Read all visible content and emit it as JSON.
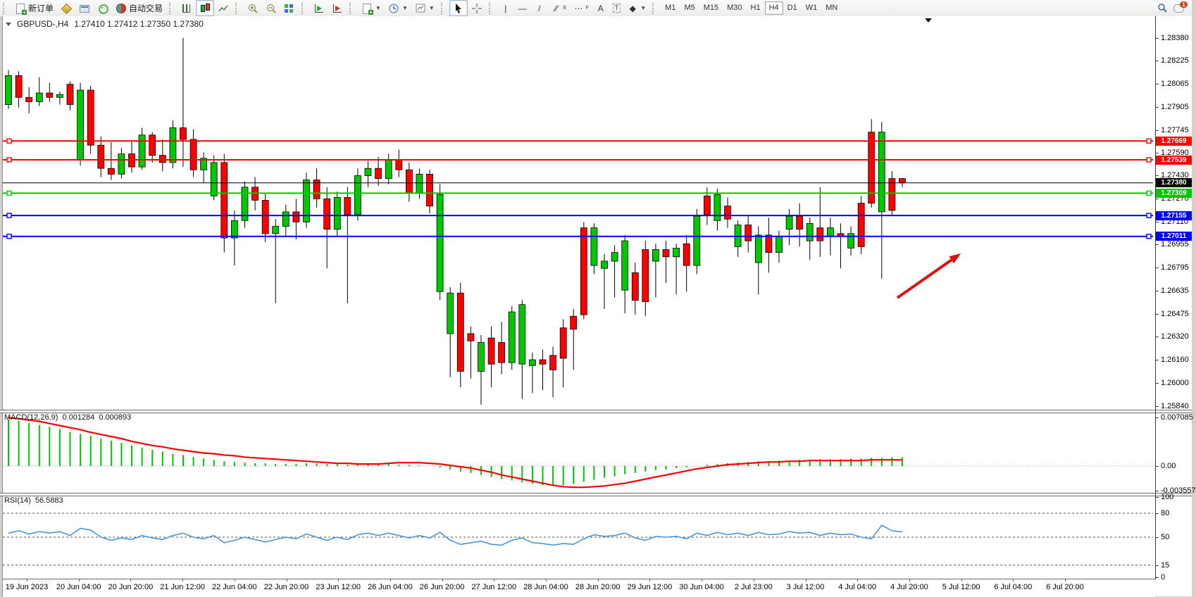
{
  "toolbar": {
    "new_order_label": "新订单",
    "auto_trading_label": "自动交易",
    "text_tool_label": "A",
    "label_tool_label": "T",
    "channel_suffix": "E",
    "fibo_suffix": "F",
    "timeframes": [
      "M1",
      "M5",
      "M15",
      "M30",
      "H1",
      "H4",
      "D1",
      "W1",
      "MN"
    ],
    "active_timeframe": "H4",
    "notifications_badge": "1"
  },
  "chart": {
    "title": {
      "symbol_period": "GBPUSD-,H4",
      "ohlc": "1.27410 1.27412 1.27350 1.27380"
    },
    "time_labels": [
      "19 Jun 2023",
      "20 Jun 04:00",
      "20 Jun 20:00",
      "21 Jun 12:00",
      "22 Jun 04:00",
      "22 Jun 20:00",
      "23 Jun 12:00",
      "26 Jun 04:00",
      "26 Jun 20:00",
      "27 Jun 12:00",
      "28 Jun 04:00",
      "28 Jun 20:00",
      "29 Jun 12:00",
      "30 Jun 04:00",
      "2 Jul 23:00",
      "3 Jul 12:00",
      "4 Jul 04:00",
      "4 Jul 20:00",
      "5 Jul 12:00",
      "6 Jul 04:00",
      "6 Jul 20:00"
    ],
    "colors": {
      "bull": "#00C800",
      "bear": "#FF0000",
      "wick": "#000000",
      "bid_line": "#000000",
      "resistance": "#FF0000",
      "support_green": "#00C800",
      "support_blue": "#0000FF",
      "macd_hist": "#00C800",
      "macd_signal": "#FF0000",
      "rsi_line": "#4A96D2",
      "arrow": "#E01010"
    }
  },
  "chart_data": [
    {
      "type": "candlestick",
      "title": "GBPUSD-,H4",
      "current_ohlc_display": "1.27410 1.27412 1.27350 1.27380",
      "current": {
        "open": 1.2741,
        "high": 1.27412,
        "low": 1.2735,
        "close": 1.2738
      },
      "ylim": [
        1.25815,
        1.28525
      ],
      "price_scale": [
        "1.28380",
        "1.28225",
        "1.28065",
        "1.27905",
        "1.27745",
        "1.27590",
        "1.27430",
        "1.27270",
        "1.27110",
        "1.26955",
        "1.26795",
        "1.26635",
        "1.26475",
        "1.26320",
        "1.26160",
        "1.26000",
        "1.25840"
      ],
      "hlines": [
        {
          "price": 1.27669,
          "label": "1.27669",
          "color": "#FF0000",
          "width": 2,
          "handles": true
        },
        {
          "price": 1.27539,
          "label": "1.27539",
          "color": "#FF0000",
          "width": 2,
          "handles": true
        },
        {
          "price": 1.2738,
          "label": "1.27380",
          "color": "#000000",
          "width": 1,
          "handles": false
        },
        {
          "price": 1.27309,
          "label": "1.27309",
          "color": "#00C800",
          "width": 2,
          "handles": true
        },
        {
          "price": 1.27155,
          "label": "1.27155",
          "color": "#0000FF",
          "width": 2,
          "handles": true
        },
        {
          "price": 1.27011,
          "label": "1.27011",
          "color": "#0000FF",
          "width": 2,
          "handles": true
        }
      ],
      "annotation_arrow": {
        "from": [
          1270,
          400
        ],
        "to": [
          1360,
          337
        ],
        "color": "#E01010"
      },
      "ohlc": [
        [
          1.2792,
          1.2816,
          1.2789,
          1.2812
        ],
        [
          1.2812,
          1.2815,
          1.279,
          1.2797
        ],
        [
          1.2797,
          1.2804,
          1.2786,
          1.2794
        ],
        [
          1.2794,
          1.2811,
          1.2791,
          1.28
        ],
        [
          1.28,
          1.2807,
          1.2794,
          1.2797
        ],
        [
          1.2797,
          1.2801,
          1.2792,
          1.2799
        ],
        [
          1.2806,
          1.2808,
          1.2788,
          1.2792
        ],
        [
          1.2754,
          1.2807,
          1.275,
          1.2802
        ],
        [
          1.2802,
          1.2805,
          1.2758,
          1.2764
        ],
        [
          1.2764,
          1.277,
          1.2742,
          1.2748
        ],
        [
          1.2748,
          1.2766,
          1.274,
          1.2744
        ],
        [
          1.2744,
          1.2762,
          1.2741,
          1.2758
        ],
        [
          1.2758,
          1.2767,
          1.2745,
          1.2749
        ],
        [
          1.2749,
          1.2776,
          1.2747,
          1.2771
        ],
        [
          1.2771,
          1.2773,
          1.2752,
          1.2757
        ],
        [
          1.2757,
          1.2768,
          1.2746,
          1.2752
        ],
        [
          1.2752,
          1.2781,
          1.2748,
          1.2776
        ],
        [
          1.2776,
          1.2838,
          1.2749,
          1.2768
        ],
        [
          1.2768,
          1.2775,
          1.2742,
          1.2747
        ],
        [
          1.2747,
          1.2759,
          1.2738,
          1.2755
        ],
        [
          1.2729,
          1.2757,
          1.2726,
          1.2752
        ],
        [
          1.2752,
          1.2758,
          1.269,
          1.27
        ],
        [
          1.27,
          1.2719,
          1.2681,
          1.2712
        ],
        [
          1.2712,
          1.2739,
          1.2707,
          1.2735
        ],
        [
          1.2735,
          1.2742,
          1.2719,
          1.2726
        ],
        [
          1.2726,
          1.2731,
          1.2697,
          1.2703
        ],
        [
          1.2703,
          1.2713,
          1.2655,
          1.2708
        ],
        [
          1.2708,
          1.2723,
          1.2701,
          1.2718
        ],
        [
          1.2718,
          1.2727,
          1.2699,
          1.2711
        ],
        [
          1.2711,
          1.2745,
          1.2707,
          1.274
        ],
        [
          1.274,
          1.2748,
          1.2721,
          1.2727
        ],
        [
          1.2727,
          1.2735,
          1.2679,
          1.2706
        ],
        [
          1.2706,
          1.2732,
          1.2701,
          1.2728
        ],
        [
          1.2728,
          1.2735,
          1.2655,
          1.2716
        ],
        [
          1.2716,
          1.2748,
          1.2712,
          1.2743
        ],
        [
          1.2743,
          1.2753,
          1.2735,
          1.2748
        ],
        [
          1.2748,
          1.2756,
          1.2736,
          1.2741
        ],
        [
          1.2741,
          1.2758,
          1.2737,
          1.2754
        ],
        [
          1.2754,
          1.2761,
          1.2742,
          1.2747
        ],
        [
          1.2747,
          1.2752,
          1.2725,
          1.2731
        ],
        [
          1.2731,
          1.2748,
          1.2727,
          1.2744
        ],
        [
          1.2744,
          1.2747,
          1.2717,
          1.2722
        ],
        [
          1.2663,
          1.2737,
          1.2657,
          1.273
        ],
        [
          1.2634,
          1.2666,
          1.2604,
          1.2662
        ],
        [
          1.2662,
          1.2669,
          1.2597,
          1.2608
        ],
        [
          1.2634,
          1.2639,
          1.2603,
          1.2629
        ],
        [
          1.2608,
          1.2633,
          1.2585,
          1.2628
        ],
        [
          1.2631,
          1.2639,
          1.2597,
          1.2613
        ],
        [
          1.2628,
          1.2642,
          1.2606,
          1.2614
        ],
        [
          1.2614,
          1.2653,
          1.2609,
          1.2649
        ],
        [
          1.2613,
          1.2657,
          1.2589,
          1.2654
        ],
        [
          1.2612,
          1.2621,
          1.2593,
          1.2616
        ],
        [
          1.2616,
          1.2623,
          1.2595,
          1.2613
        ],
        [
          1.2619,
          1.2625,
          1.259,
          1.2609
        ],
        [
          1.2638,
          1.2644,
          1.2597,
          1.2617
        ],
        [
          1.2646,
          1.2651,
          1.2609,
          1.2637
        ],
        [
          1.2707,
          1.2711,
          1.2644,
          1.2647
        ],
        [
          1.2681,
          1.271,
          1.2675,
          1.2707
        ],
        [
          1.2679,
          1.2689,
          1.2651,
          1.2684
        ],
        [
          1.2684,
          1.2695,
          1.2659,
          1.269
        ],
        [
          1.2664,
          1.2702,
          1.2648,
          1.2698
        ],
        [
          1.2676,
          1.2683,
          1.2647,
          1.2657
        ],
        [
          1.2692,
          1.2698,
          1.2646,
          1.2656
        ],
        [
          1.2684,
          1.2696,
          1.2659,
          1.2692
        ],
        [
          1.2692,
          1.2698,
          1.2669,
          1.2687
        ],
        [
          1.2687,
          1.2696,
          1.2661,
          1.2693
        ],
        [
          1.2696,
          1.2702,
          1.2663,
          1.2681
        ],
        [
          1.2681,
          1.272,
          1.2675,
          1.2715
        ],
        [
          1.2729,
          1.2735,
          1.2709,
          1.2716
        ],
        [
          1.2712,
          1.2734,
          1.2705,
          1.273
        ],
        [
          1.2722,
          1.2728,
          1.2707,
          1.2713
        ],
        [
          1.2694,
          1.2712,
          1.2687,
          1.2709
        ],
        [
          1.2709,
          1.2716,
          1.269,
          1.2698
        ],
        [
          1.2683,
          1.2708,
          1.2661,
          1.2702
        ],
        [
          1.2702,
          1.2714,
          1.2676,
          1.269
        ],
        [
          1.269,
          1.2705,
          1.2683,
          1.2701
        ],
        [
          1.2706,
          1.272,
          1.2695,
          1.2715
        ],
        [
          1.2715,
          1.2724,
          1.2694,
          1.2706
        ],
        [
          1.2698,
          1.2714,
          1.2685,
          1.271
        ],
        [
          1.2707,
          1.2735,
          1.2687,
          1.2698
        ],
        [
          1.2701,
          1.2714,
          1.2688,
          1.2707
        ],
        [
          1.2703,
          1.271,
          1.2679,
          1.2701
        ],
        [
          1.2693,
          1.2708,
          1.2688,
          1.2703
        ],
        [
          1.2724,
          1.2729,
          1.2689,
          1.2694
        ],
        [
          1.2773,
          1.2782,
          1.2721,
          1.2724
        ],
        [
          1.2718,
          1.278,
          1.2672,
          1.2773
        ],
        [
          1.2741,
          1.2746,
          1.2716,
          1.2719
        ],
        [
          1.2741,
          1.27412,
          1.2735,
          1.2738
        ]
      ]
    },
    {
      "type": "bar",
      "name": "MACD",
      "label": "MACD(12,26,9)",
      "value_display": "0.001284",
      "signal_display": "0.000893",
      "axis_labels": [
        "0.007085",
        "0.00",
        "-0.003557"
      ],
      "axis_values": [
        0.007085,
        0,
        -0.003557
      ],
      "values": [
        0.0068,
        0.0066,
        0.0063,
        0.006,
        0.0057,
        0.0054,
        0.005,
        0.0047,
        0.0044,
        0.004,
        0.0037,
        0.0034,
        0.003,
        0.0027,
        0.0024,
        0.0021,
        0.0018,
        0.0016,
        0.0013,
        0.0011,
        0.0009,
        0.0007,
        0.0006,
        0.0005,
        0.0004,
        0.0004,
        0.0003,
        0.0003,
        0.0003,
        0.0004,
        0.0004,
        0.0003,
        0.0003,
        0.0002,
        0.0003,
        0.0003,
        0.0002,
        0.0003,
        0.0002,
        0.0002,
        0.0001,
        0.0,
        -0.0002,
        -0.0005,
        -0.0008,
        -0.001,
        -0.0013,
        -0.0016,
        -0.0019,
        -0.0021,
        -0.0024,
        -0.0026,
        -0.0028,
        -0.0029,
        -0.0028,
        -0.0026,
        -0.0023,
        -0.002,
        -0.0017,
        -0.0015,
        -0.0012,
        -0.001,
        -0.0008,
        -0.0006,
        -0.0005,
        -0.0003,
        -0.0002,
        0.0,
        0.0002,
        0.0003,
        0.0004,
        0.0005,
        0.0006,
        0.0007,
        0.0007,
        0.0008,
        0.0008,
        0.0009,
        0.0009,
        0.001,
        0.001,
        0.001,
        0.0011,
        0.0011,
        0.0012,
        0.0012,
        0.0013,
        0.001284
      ],
      "signal": [
        0.00705,
        0.0069,
        0.0067,
        0.0065,
        0.0062,
        0.0059,
        0.0056,
        0.0053,
        0.0049,
        0.0046,
        0.0043,
        0.004,
        0.0036,
        0.0033,
        0.003,
        0.0028,
        0.0025,
        0.0023,
        0.0021,
        0.0019,
        0.0018,
        0.0016,
        0.0015,
        0.0013,
        0.0012,
        0.0011,
        0.001,
        0.0009,
        0.0008,
        0.0007,
        0.0006,
        0.0005,
        0.0004,
        0.0004,
        0.0003,
        0.0003,
        0.0003,
        0.0004,
        0.0005,
        0.0005,
        0.0005,
        0.0004,
        0.0003,
        0.0001,
        -0.0001,
        -0.0003,
        -0.0006,
        -0.0009,
        -0.0013,
        -0.0016,
        -0.0019,
        -0.0022,
        -0.0025,
        -0.0028,
        -0.003,
        -0.0031,
        -0.0031,
        -0.003,
        -0.0029,
        -0.0027,
        -0.0025,
        -0.0022,
        -0.0019,
        -0.0016,
        -0.0013,
        -0.001,
        -0.0007,
        -0.0004,
        -0.0002,
        0.0,
        0.0002,
        0.0003,
        0.0004,
        0.0005,
        0.0006,
        0.0006,
        0.0007,
        0.0007,
        0.0008,
        0.0008,
        0.0008,
        0.0008,
        0.0008,
        0.0008,
        0.0009,
        0.0009,
        0.0009,
        0.000893
      ]
    },
    {
      "type": "line",
      "name": "RSI",
      "label": "RSI(14)",
      "value_display": "56.5883",
      "axis_labels": [
        "100",
        "80",
        "50",
        "15",
        "0"
      ],
      "axis_values": [
        100,
        80,
        50,
        15,
        0
      ],
      "levels": [
        80,
        50,
        15
      ],
      "ylim": [
        0,
        100
      ],
      "values": [
        55,
        58,
        54,
        57,
        55,
        57,
        52,
        61,
        59,
        50,
        46,
        49,
        47,
        52,
        49,
        47,
        52,
        55,
        50,
        48,
        52,
        43,
        46,
        50,
        47,
        44,
        47,
        50,
        48,
        54,
        50,
        46,
        50,
        47,
        53,
        55,
        52,
        55,
        52,
        49,
        52,
        49,
        56,
        46,
        41,
        43,
        45,
        41,
        40,
        46,
        49,
        43,
        42,
        40,
        42,
        41,
        48,
        53,
        51,
        52,
        55,
        49,
        46,
        51,
        50,
        51,
        48,
        55,
        52,
        56,
        53,
        55,
        52,
        56,
        53,
        54,
        57,
        55,
        56,
        52,
        55,
        53,
        54,
        50,
        48,
        65,
        58,
        56.6
      ]
    }
  ]
}
